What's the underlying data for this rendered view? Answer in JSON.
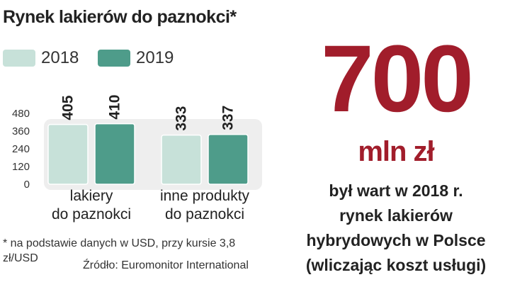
{
  "chart_data": {
    "type": "bar",
    "title": "Rynek lakierów do paznokci*",
    "categories": [
      [
        "lakiery",
        "do paznokci"
      ],
      [
        "inne produkty",
        "do paznokci"
      ]
    ],
    "series": [
      {
        "name": "2018",
        "values": [
          405,
          333
        ],
        "color": "#c7e1d9"
      },
      {
        "name": "2019",
        "values": [
          410,
          337
        ],
        "color": "#4e9c8a"
      }
    ],
    "ylim": [
      0,
      480
    ],
    "yticks": [
      "0",
      "120",
      "240",
      "360",
      "480"
    ],
    "xlabel": "",
    "ylabel": "",
    "grid": false,
    "legend_position": "top-left",
    "value_labels_rotated": true,
    "background_color": "#eeeeee"
  },
  "footnote": "* na podstawie danych w USD, przy kursie 3,8 zł/USD",
  "source": "Źródło: Euromonitor International",
  "highlight": {
    "number": "700",
    "unit": "mln zł",
    "color": "#a11d2b",
    "description_lines": [
      "był wart w 2018 r.",
      "rynek lakierów",
      "hybrydowych w Polsce",
      "(wliczając koszt usługi)"
    ]
  }
}
